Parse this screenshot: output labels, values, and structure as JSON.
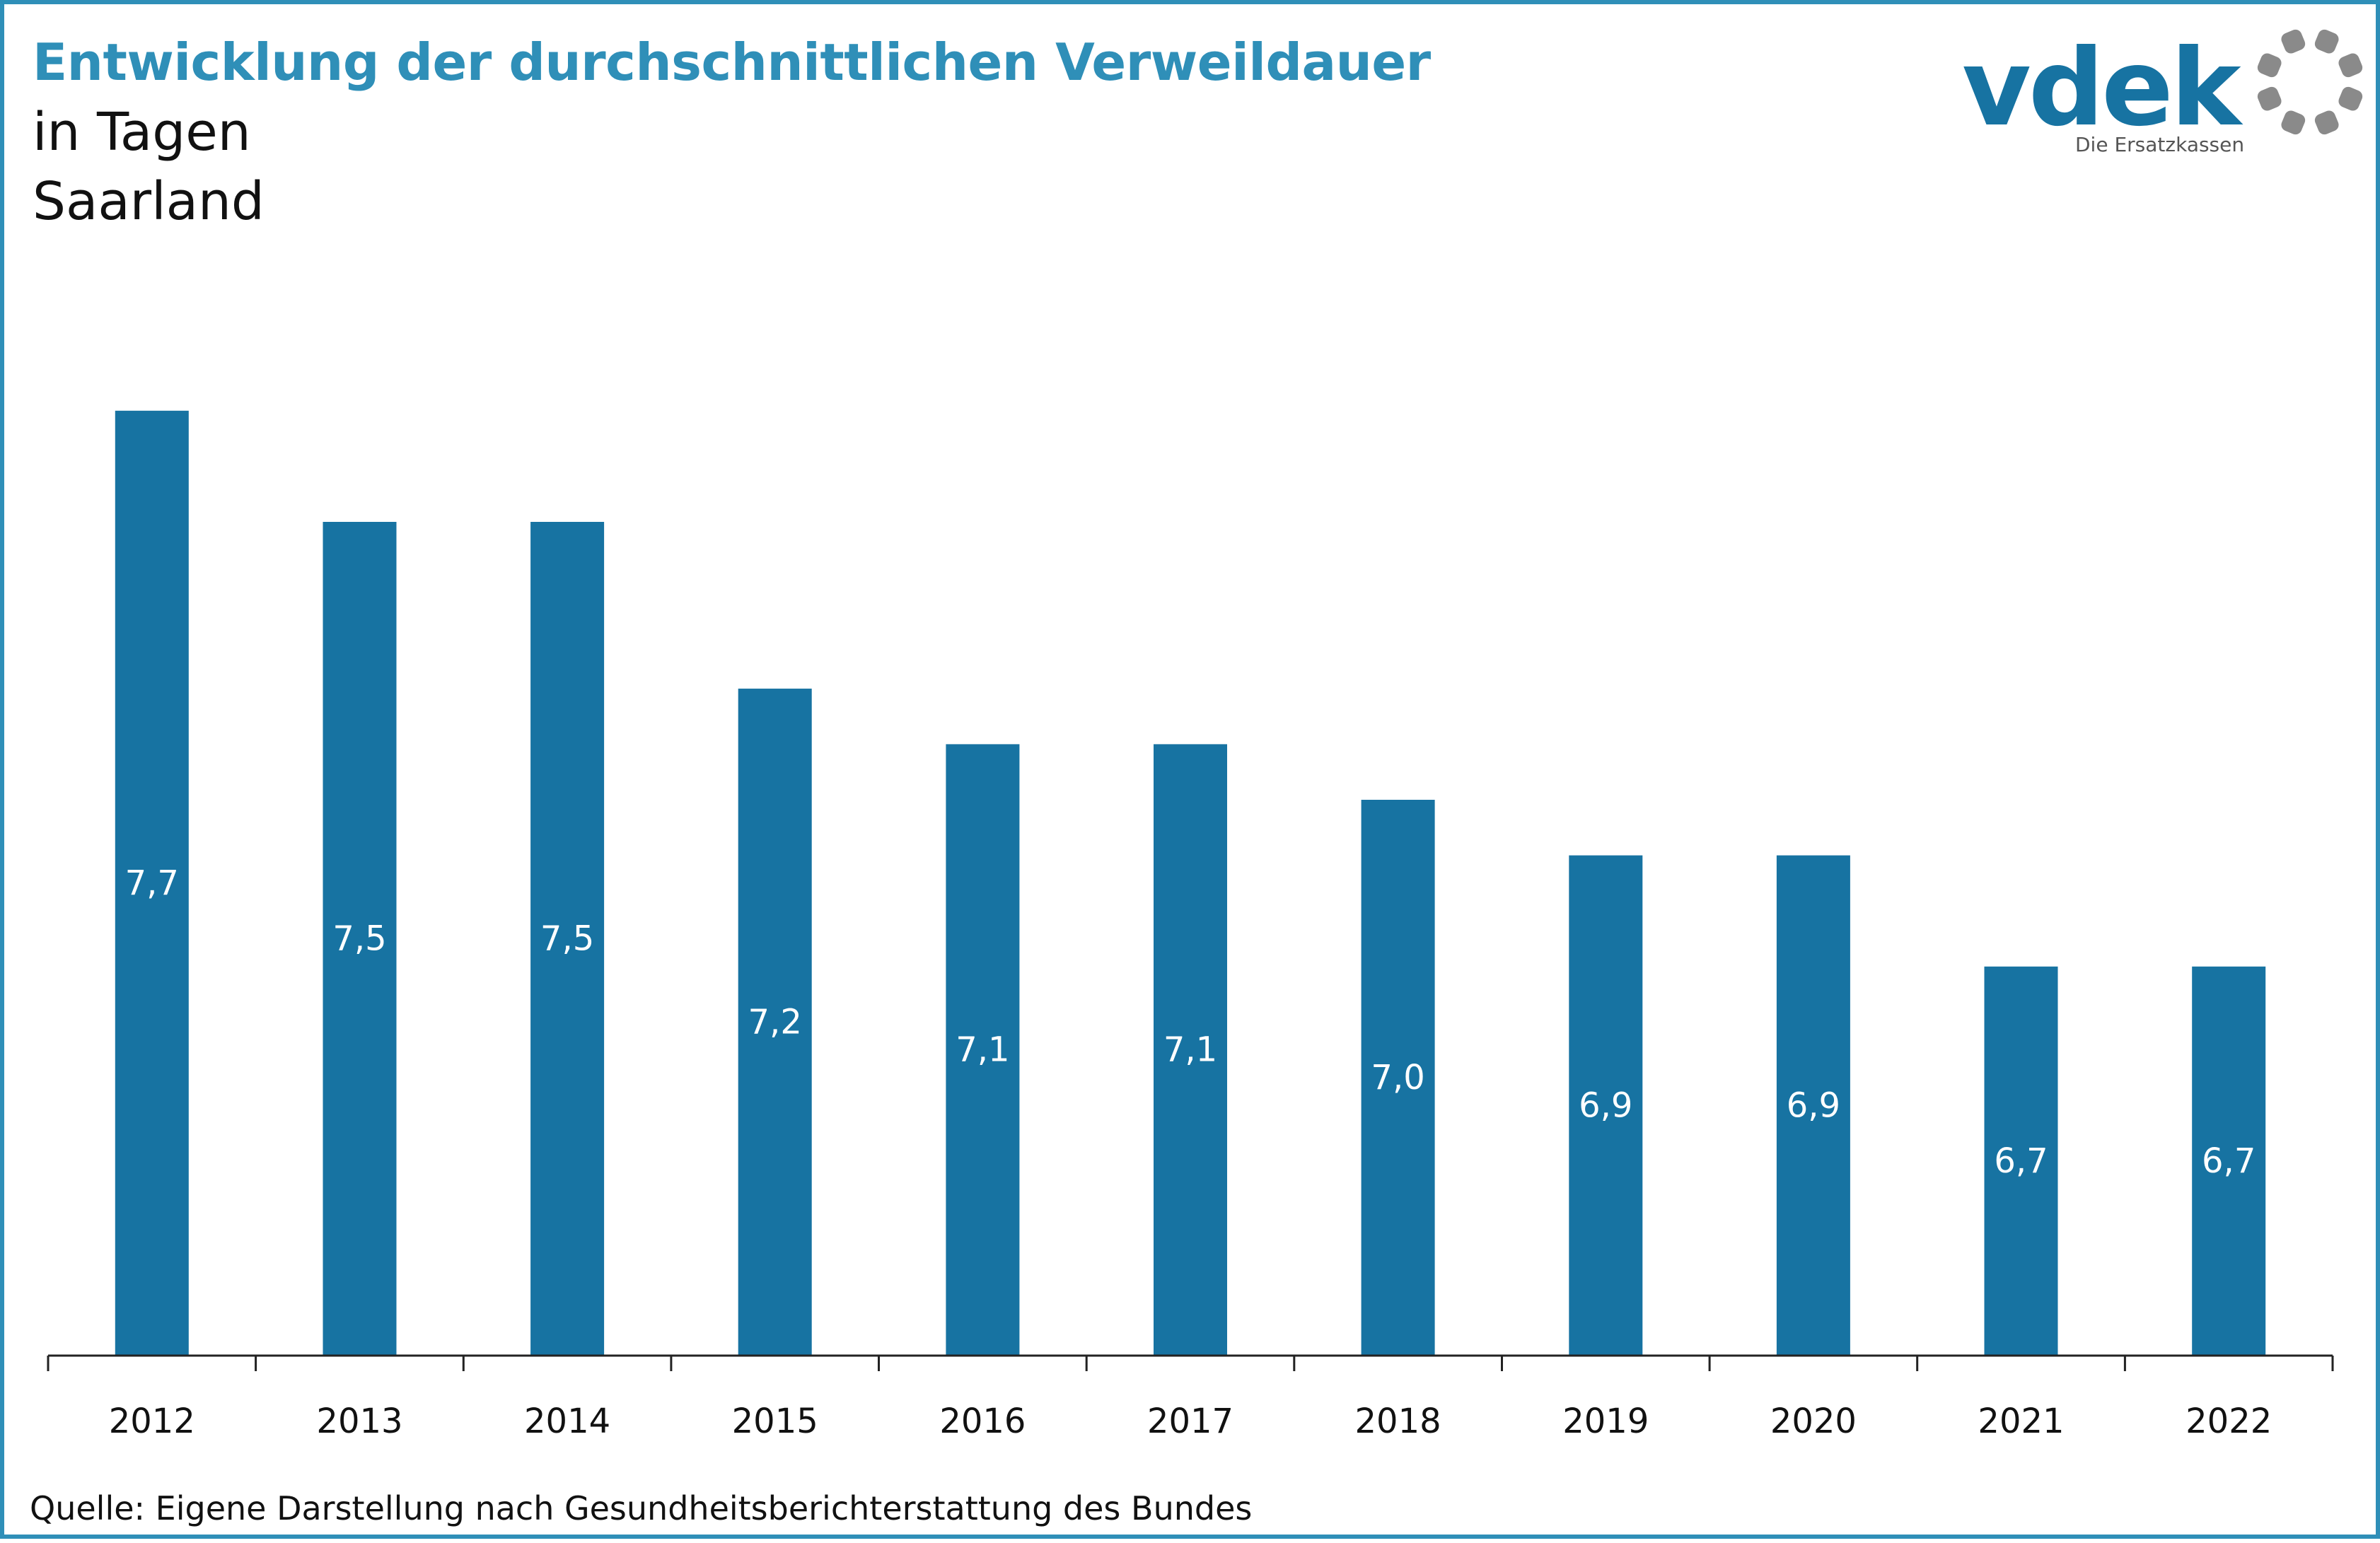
{
  "header": {
    "title": "Entwicklung der durchschnittlichen Verweildauer",
    "subtitle_line1": "in Tagen",
    "subtitle_line2": "Saarland"
  },
  "logo": {
    "wordmark": "vdek",
    "tagline": "Die Ersatzkassen",
    "icon": "ring-of-dots-icon"
  },
  "footer": {
    "source": "Quelle: Eigene Darstellung nach Gesundheitsberichterstattung des Bundes"
  },
  "colors": {
    "bar": "#1773a2",
    "title": "#2f8fb8",
    "border": "#2f8fb8",
    "logo_text": "#1773a2",
    "logo_dots": "#8a8a8a",
    "axis": "#222222"
  },
  "chart_data": {
    "type": "bar",
    "categories": [
      "2012",
      "2013",
      "2014",
      "2015",
      "2016",
      "2017",
      "2018",
      "2019",
      "2020",
      "2021",
      "2022"
    ],
    "values": [
      7.7,
      7.5,
      7.5,
      7.2,
      7.1,
      7.1,
      7.0,
      6.9,
      6.9,
      6.7,
      6.7
    ],
    "data_labels": [
      "7,7",
      "7,5",
      "7,5",
      "7,2",
      "7,1",
      "7,1",
      "7,0",
      "6,9",
      "6,9",
      "6,7",
      "6,7"
    ],
    "title": "Entwicklung der durchschnittlichen Verweildauer",
    "xlabel": "",
    "ylabel": "",
    "ylim": [
      6.0,
      7.8
    ],
    "grid": false,
    "legend": "none"
  }
}
